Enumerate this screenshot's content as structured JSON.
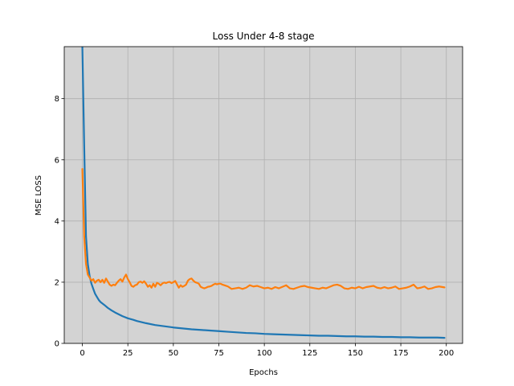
{
  "chart_data": {
    "type": "line",
    "title": "Loss Under 4-8 stage",
    "xlabel": "Epochs",
    "ylabel": "MSE LOSS",
    "xlim": [
      -9.95,
      208.95
    ],
    "ylim": [
      0,
      9.7
    ],
    "xticks": [
      0,
      25,
      50,
      75,
      100,
      125,
      150,
      175,
      200
    ],
    "yticks": [
      0,
      2,
      4,
      6,
      8
    ],
    "grid": true,
    "background": "#d3d3d3",
    "legend": "none",
    "series": [
      {
        "color": "#1f77b4",
        "x": [
          0,
          1,
          2,
          3,
          4,
          5,
          6,
          7,
          8,
          9,
          10,
          12,
          14,
          16,
          18,
          20,
          22,
          25,
          28,
          30,
          35,
          40,
          45,
          50,
          55,
          60,
          65,
          70,
          75,
          80,
          85,
          90,
          95,
          100,
          105,
          110,
          115,
          120,
          125,
          130,
          135,
          140,
          145,
          150,
          155,
          160,
          165,
          170,
          175,
          180,
          185,
          190,
          195,
          199
        ],
        "values": [
          9.7,
          6.5,
          3.5,
          2.6,
          2.2,
          1.95,
          1.78,
          1.62,
          1.52,
          1.42,
          1.35,
          1.26,
          1.16,
          1.08,
          1.01,
          0.95,
          0.89,
          0.82,
          0.77,
          0.73,
          0.66,
          0.6,
          0.56,
          0.52,
          0.49,
          0.46,
          0.44,
          0.42,
          0.4,
          0.38,
          0.36,
          0.34,
          0.33,
          0.31,
          0.3,
          0.29,
          0.28,
          0.27,
          0.26,
          0.25,
          0.25,
          0.24,
          0.23,
          0.23,
          0.22,
          0.22,
          0.21,
          0.21,
          0.2,
          0.2,
          0.19,
          0.19,
          0.19,
          0.18
        ]
      },
      {
        "color": "#ff7f0e",
        "x": [
          0,
          1,
          2,
          3,
          4,
          5,
          6,
          7,
          8,
          9,
          10,
          11,
          12,
          13,
          14,
          15,
          16,
          17,
          18,
          19,
          20,
          21,
          22,
          23,
          24,
          25,
          26,
          27,
          28,
          29,
          30,
          31,
          32,
          33,
          34,
          35,
          36,
          37,
          38,
          39,
          40,
          41,
          42,
          43,
          44,
          45,
          46,
          47,
          48,
          49,
          50,
          51,
          52,
          53,
          54,
          55,
          56,
          57,
          58,
          59,
          60,
          61,
          62,
          63,
          64,
          65,
          66,
          67,
          68,
          69,
          70,
          71,
          72,
          73,
          74,
          75,
          76,
          77,
          78,
          79,
          80,
          82,
          84,
          86,
          88,
          90,
          92,
          94,
          96,
          98,
          100,
          102,
          104,
          106,
          108,
          110,
          112,
          114,
          116,
          118,
          120,
          122,
          124,
          126,
          128,
          130,
          132,
          134,
          136,
          138,
          140,
          142,
          144,
          146,
          148,
          150,
          152,
          154,
          156,
          158,
          160,
          162,
          164,
          166,
          168,
          170,
          172,
          174,
          176,
          178,
          180,
          182,
          184,
          186,
          188,
          190,
          192,
          194,
          196,
          198,
          199
        ],
        "values": [
          5.7,
          3.5,
          2.6,
          2.25,
          2.15,
          2.05,
          2.1,
          1.98,
          2.05,
          2.08,
          2.0,
          2.08,
          1.98,
          2.12,
          2.02,
          1.92,
          1.88,
          1.92,
          1.9,
          1.98,
          2.05,
          2.1,
          2.02,
          2.15,
          2.25,
          2.1,
          2.0,
          1.88,
          1.85,
          1.9,
          1.92,
          2.0,
          2.02,
          1.98,
          2.03,
          1.95,
          1.85,
          1.9,
          1.82,
          1.95,
          1.85,
          1.98,
          1.95,
          1.9,
          1.96,
          1.99,
          1.97,
          2.0,
          2.01,
          1.97,
          2.0,
          2.04,
          1.93,
          1.82,
          1.9,
          1.85,
          1.88,
          1.92,
          2.05,
          2.1,
          2.12,
          2.05,
          2.0,
          1.98,
          1.95,
          1.85,
          1.82,
          1.8,
          1.82,
          1.85,
          1.86,
          1.88,
          1.92,
          1.95,
          1.93,
          1.95,
          1.95,
          1.92,
          1.9,
          1.88,
          1.86,
          1.78,
          1.8,
          1.82,
          1.78,
          1.82,
          1.9,
          1.86,
          1.88,
          1.84,
          1.8,
          1.82,
          1.78,
          1.84,
          1.8,
          1.85,
          1.9,
          1.8,
          1.78,
          1.82,
          1.86,
          1.88,
          1.84,
          1.82,
          1.8,
          1.78,
          1.82,
          1.8,
          1.85,
          1.9,
          1.92,
          1.88,
          1.8,
          1.78,
          1.82,
          1.8,
          1.85,
          1.8,
          1.84,
          1.86,
          1.88,
          1.82,
          1.8,
          1.84,
          1.8,
          1.82,
          1.86,
          1.78,
          1.8,
          1.82,
          1.86,
          1.92,
          1.8,
          1.82,
          1.86,
          1.78,
          1.8,
          1.84,
          1.86,
          1.84,
          1.83
        ]
      }
    ]
  }
}
